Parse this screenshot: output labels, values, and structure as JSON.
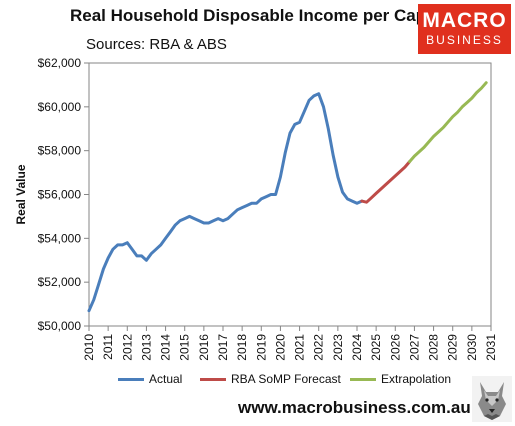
{
  "header": {
    "title": "Real Household Disposable Income per Capita",
    "subtitle": "Sources: RBA & ABS",
    "logo_line1": "MACRO",
    "logo_line2": "BUSINESS",
    "url": "www.macrobusiness.com.au"
  },
  "colors": {
    "actual": "#4a7ebb",
    "forecast": "#be4b48",
    "extrapolation": "#98b954",
    "logo": "#e0301e"
  },
  "chart_data": {
    "type": "line",
    "ylabel": "Real Value",
    "xlabel": "",
    "ylim": [
      50000,
      62000
    ],
    "xlim": [
      2010,
      2031
    ],
    "yticks": [
      "$50,000",
      "$52,000",
      "$54,000",
      "$56,000",
      "$58,000",
      "$60,000",
      "$62,000"
    ],
    "xticks": [
      "2010",
      "2011",
      "2012",
      "2013",
      "2014",
      "2015",
      "2016",
      "2017",
      "2018",
      "2019",
      "2020",
      "2021",
      "2022",
      "2023",
      "2024",
      "2025",
      "2026",
      "2027",
      "2028",
      "2029",
      "2030",
      "2031"
    ],
    "legend_position": "bottom",
    "series": [
      {
        "name": "Actual",
        "x": [
          2010.0,
          2010.25,
          2010.5,
          2010.75,
          2011.0,
          2011.25,
          2011.5,
          2011.75,
          2012.0,
          2012.25,
          2012.5,
          2012.75,
          2013.0,
          2013.25,
          2013.5,
          2013.75,
          2014.0,
          2014.25,
          2014.5,
          2014.75,
          2015.0,
          2015.25,
          2015.5,
          2015.75,
          2016.0,
          2016.25,
          2016.5,
          2016.75,
          2017.0,
          2017.25,
          2017.5,
          2017.75,
          2018.0,
          2018.25,
          2018.5,
          2018.75,
          2019.0,
          2019.25,
          2019.5,
          2019.75,
          2020.0,
          2020.25,
          2020.5,
          2020.75,
          2021.0,
          2021.25,
          2021.5,
          2021.75,
          2022.0,
          2022.25,
          2022.5,
          2022.75,
          2023.0,
          2023.25,
          2023.5,
          2023.75,
          2024.0,
          2024.25
        ],
        "values": [
          50700,
          51200,
          51900,
          52600,
          53100,
          53500,
          53700,
          53700,
          53800,
          53500,
          53200,
          53200,
          53000,
          53300,
          53500,
          53700,
          54000,
          54300,
          54600,
          54800,
          54900,
          55000,
          54900,
          54800,
          54700,
          54700,
          54800,
          54900,
          54800,
          54900,
          55100,
          55300,
          55400,
          55500,
          55600,
          55600,
          55800,
          55900,
          56000,
          56000,
          56800,
          57900,
          58800,
          59200,
          59300,
          59800,
          60300,
          60500,
          60600,
          60000,
          59000,
          57800,
          56800,
          56100,
          55800,
          55700,
          55600,
          55700
        ]
      },
      {
        "name": "RBA SoMP Forecast",
        "x": [
          2024.25,
          2024.5,
          2024.75,
          2025.0,
          2025.25,
          2025.5,
          2025.75,
          2026.0,
          2026.25,
          2026.5,
          2026.75
        ],
        "values": [
          55700,
          55650,
          55850,
          56050,
          56250,
          56450,
          56650,
          56850,
          57050,
          57250,
          57500
        ]
      },
      {
        "name": "Extrapolation",
        "x": [
          2026.75,
          2027.0,
          2027.25,
          2027.5,
          2027.75,
          2028.0,
          2028.25,
          2028.5,
          2028.75,
          2029.0,
          2029.25,
          2029.5,
          2029.75,
          2030.0,
          2030.25,
          2030.5,
          2030.75
        ],
        "values": [
          57500,
          57750,
          57950,
          58150,
          58400,
          58650,
          58850,
          59050,
          59300,
          59550,
          59750,
          60000,
          60200,
          60400,
          60650,
          60850,
          61100
        ]
      }
    ]
  }
}
